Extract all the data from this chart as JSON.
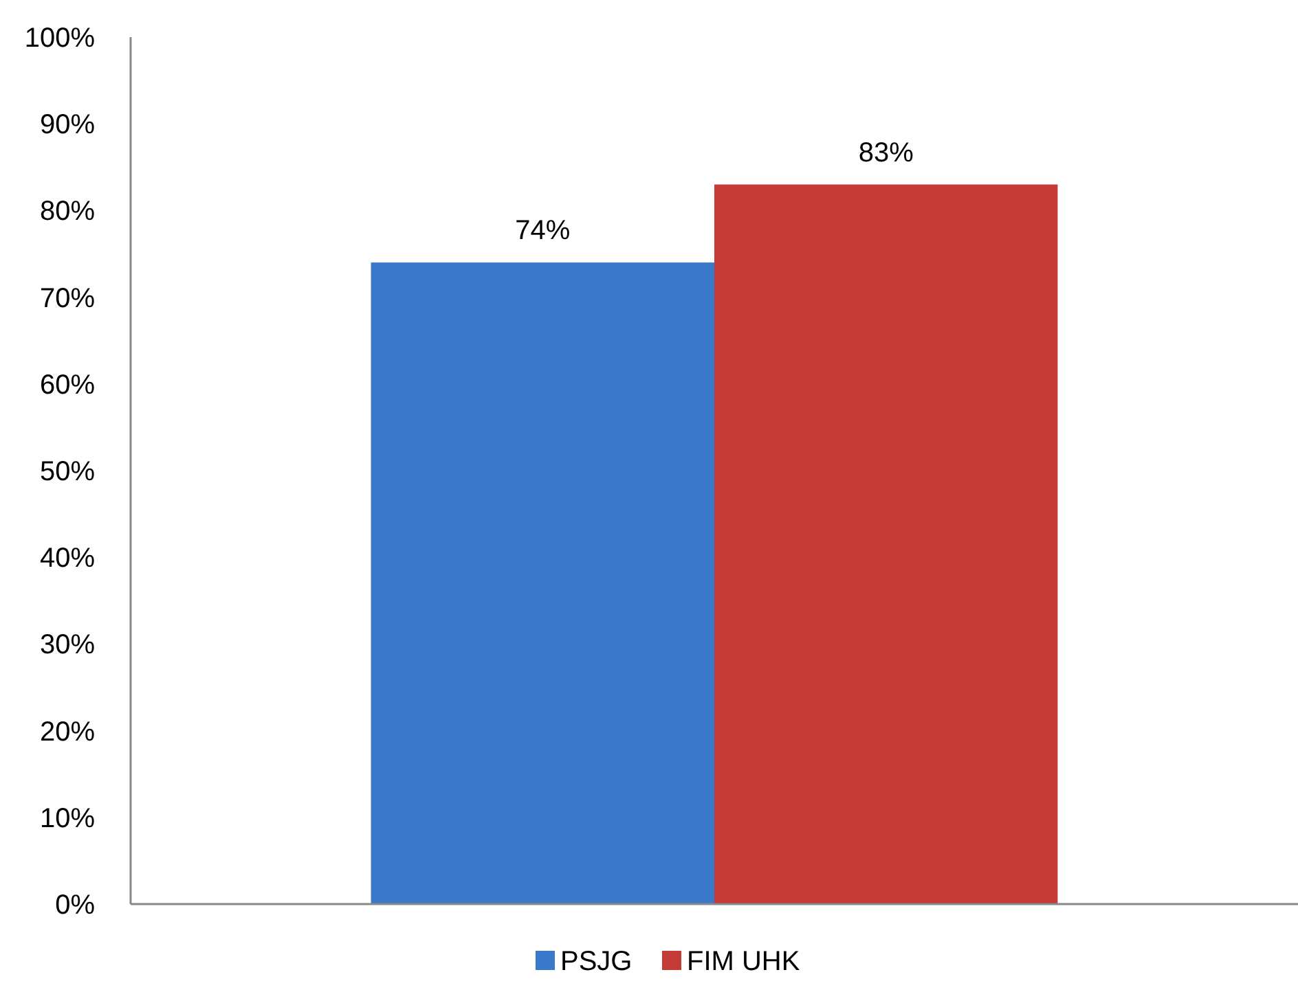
{
  "chart_data": {
    "type": "bar",
    "categories": [
      null
    ],
    "series": [
      {
        "name": "PSJG",
        "color": "#3a78c9",
        "values": [
          74
        ],
        "value_labels": [
          "74%"
        ]
      },
      {
        "name": "FIM UHK",
        "color": "#c43a36",
        "values": [
          83
        ],
        "value_labels": [
          "83%"
        ]
      }
    ],
    "ylim": [
      0,
      100
    ],
    "yticks": [
      {
        "value": 0,
        "label": "0%"
      },
      {
        "value": 10,
        "label": "10%"
      },
      {
        "value": 20,
        "label": "20%"
      },
      {
        "value": 30,
        "label": "30%"
      },
      {
        "value": 40,
        "label": "40%"
      },
      {
        "value": 50,
        "label": "50%"
      },
      {
        "value": 60,
        "label": "60%"
      },
      {
        "value": 70,
        "label": "70%"
      },
      {
        "value": 80,
        "label": "80%"
      },
      {
        "value": 90,
        "label": "90%"
      },
      {
        "value": 100,
        "label": "100%"
      }
    ],
    "grid": false,
    "legend": "bottom"
  }
}
